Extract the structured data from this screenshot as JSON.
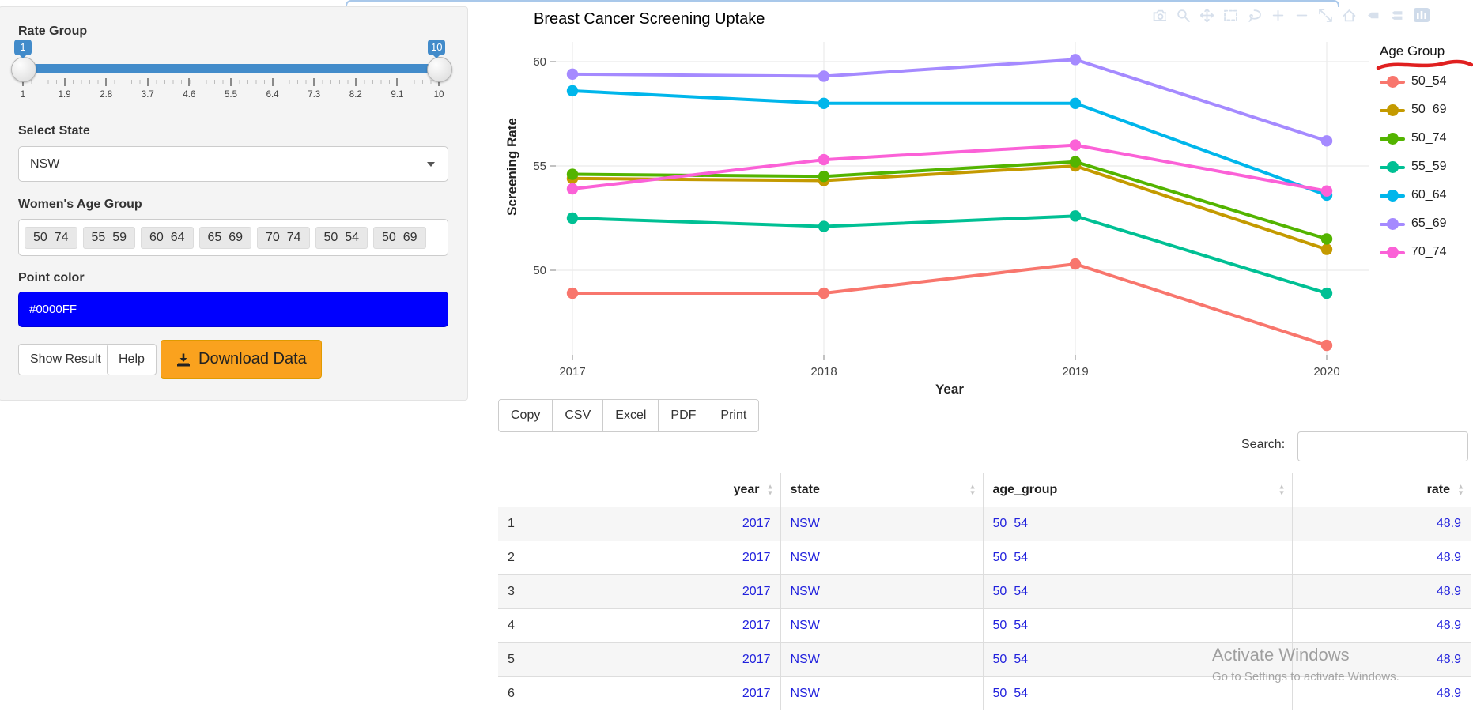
{
  "sidebar": {
    "rate_group": {
      "label": "Rate Group",
      "from": "1",
      "to": "10",
      "ticks": [
        "1",
        "1.9",
        "2.8",
        "3.7",
        "4.6",
        "5.5",
        "6.4",
        "7.3",
        "8.2",
        "9.1",
        "10"
      ]
    },
    "state": {
      "label": "Select State",
      "value": "NSW"
    },
    "age_group": {
      "label": "Women's Age Group",
      "chips": [
        "50_74",
        "55_59",
        "60_64",
        "65_69",
        "70_74",
        "50_54",
        "50_69"
      ]
    },
    "point_color": {
      "label": "Point color",
      "value": "#0000FF",
      "background": "#0000FF"
    },
    "buttons": {
      "show_result": "Show Result",
      "help": "Help",
      "download": "Download Data",
      "download_bg": "#FAA21E"
    }
  },
  "chart_data": {
    "type": "line",
    "title": "Breast Cancer Screening Uptake",
    "xlabel": "Year",
    "ylabel": "Screening Rate",
    "legend_title": "Age Group",
    "x": [
      2017,
      2018,
      2019,
      2020
    ],
    "yticks": [
      50,
      55,
      60
    ],
    "ylim": [
      46,
      61
    ],
    "grid": true,
    "legend_position": "right",
    "series": [
      {
        "name": "50_54",
        "color": "#F8766D",
        "values": [
          48.9,
          48.9,
          50.3,
          46.4
        ]
      },
      {
        "name": "50_69",
        "color": "#C49A00",
        "values": [
          54.4,
          54.3,
          55.0,
          51.0
        ]
      },
      {
        "name": "50_74",
        "color": "#53B400",
        "values": [
          54.6,
          54.5,
          55.2,
          51.5
        ]
      },
      {
        "name": "55_59",
        "color": "#00C094",
        "values": [
          52.5,
          52.1,
          52.6,
          48.9
        ]
      },
      {
        "name": "60_64",
        "color": "#00B6EB",
        "values": [
          58.6,
          58.0,
          58.0,
          53.6
        ]
      },
      {
        "name": "65_69",
        "color": "#A58AFF",
        "values": [
          59.4,
          59.3,
          60.1,
          56.2
        ]
      },
      {
        "name": "70_74",
        "color": "#FB61D7",
        "values": [
          53.9,
          55.3,
          56.0,
          53.8
        ]
      }
    ]
  },
  "modebar": {
    "icons": [
      "camera",
      "zoom",
      "pan",
      "box-select",
      "lasso",
      "zoom-in",
      "zoom-out",
      "autoscale",
      "reset-axes",
      "hover-closest",
      "hover-compare",
      "plotly-logo"
    ]
  },
  "table": {
    "buttons": [
      "Copy",
      "CSV",
      "Excel",
      "PDF",
      "Print"
    ],
    "search_label": "Search:",
    "columns": [
      "",
      "year",
      "state",
      "age_group",
      "rate"
    ],
    "rows": [
      [
        "1",
        "2017",
        "NSW",
        "50_54",
        "48.9"
      ],
      [
        "2",
        "2017",
        "NSW",
        "50_54",
        "48.9"
      ],
      [
        "3",
        "2017",
        "NSW",
        "50_54",
        "48.9"
      ],
      [
        "4",
        "2017",
        "NSW",
        "50_54",
        "48.9"
      ],
      [
        "5",
        "2017",
        "NSW",
        "50_54",
        "48.9"
      ],
      [
        "6",
        "2017",
        "NSW",
        "50_54",
        "48.9"
      ]
    ],
    "link_color": "#2222DD"
  },
  "watermark": {
    "line1": "Activate Windows",
    "line2": "Go to Settings to activate Windows."
  },
  "colors": {
    "slider_accent": "#428bca",
    "annotation_red": "#E02020"
  }
}
